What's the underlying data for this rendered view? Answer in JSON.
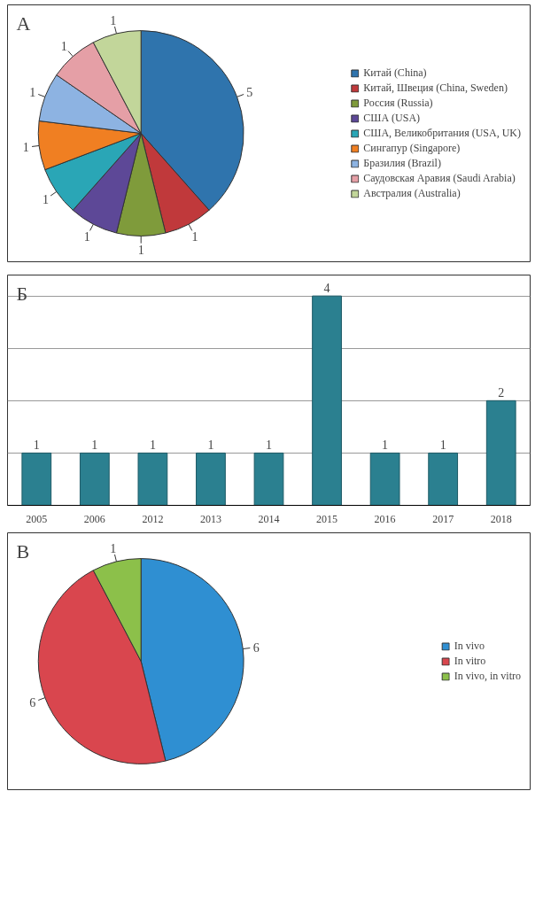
{
  "chart_data": [
    {
      "type": "pie",
      "title": "А",
      "categories": [
        "Китай (China)",
        "Китай, Швеция (China, Sweden)",
        "Россия (Russia)",
        "США (USA)",
        "США, Великобритания (USA, UK)",
        "Сингапур (Singapore)",
        "Бразилия (Brazil)",
        "Саудовская Аравия (Saudi Arabia)",
        "Австралия (Australia)"
      ],
      "values": [
        5,
        1,
        1,
        1,
        1,
        1,
        1,
        1,
        1
      ],
      "colors": [
        "#2f74ad",
        "#c0393b",
        "#7f9b3b",
        "#5d4897",
        "#2aa6b6",
        "#f07f22",
        "#8db3e2",
        "#e59fa6",
        "#c2d69a"
      ],
      "data_labels": true,
      "legend": "right"
    },
    {
      "type": "bar",
      "title": "Б",
      "categories": [
        "2005",
        "2006",
        "2012",
        "2013",
        "2014",
        "2015",
        "2016",
        "2017",
        "2018"
      ],
      "values": [
        1,
        1,
        1,
        1,
        1,
        4,
        1,
        1,
        2
      ],
      "color": "#2b8090",
      "ylim": [
        0,
        4.4
      ],
      "yticks": [
        {
          "value": 0,
          "label": null
        },
        {
          "value": 1,
          "label": null
        },
        {
          "value": 2,
          "label": null
        },
        {
          "value": 3,
          "label": null
        },
        {
          "value": 4,
          "label": null
        }
      ],
      "tick_labels": "x",
      "grid": "y",
      "data_labels": true
    },
    {
      "type": "pie",
      "title": "В",
      "categories": [
        "In vivo",
        "In vitro",
        "In vivo, in vitro"
      ],
      "values": [
        6,
        6,
        1
      ],
      "colors": [
        "#2f8fd2",
        "#d9464e",
        "#8cc04a"
      ],
      "data_labels": true,
      "legend": "right"
    }
  ]
}
